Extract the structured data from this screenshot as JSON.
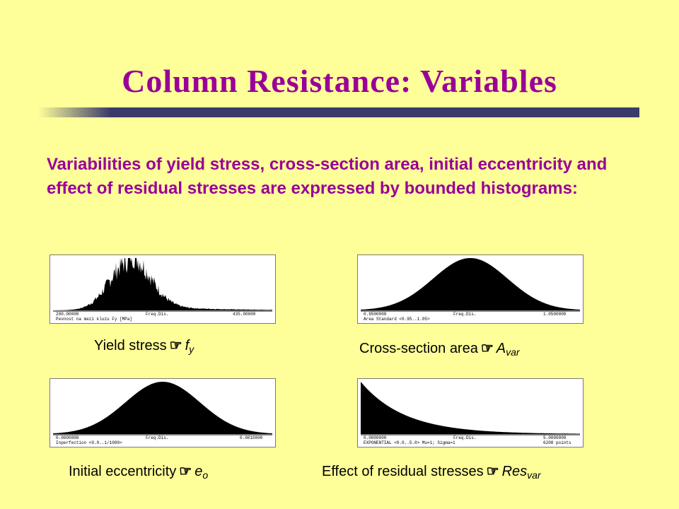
{
  "slide": {
    "title": "Column Resistance:  Variables",
    "intro": "Variabilities of yield stress, cross-section area, initial eccentricity and effect of residual stresses are expressed by bounded histograms:"
  },
  "histograms": [
    {
      "id": "yield",
      "min": "200.00000",
      "mid": "Freq.Dis.",
      "max": "435.00000",
      "desc": "Pevnost na mezi kluzu Fy [MPa]",
      "extra": "",
      "caption": "Yield stress",
      "icon": "pointing-hand-icon",
      "symbol": "f",
      "sub": "y"
    },
    {
      "id": "area",
      "min": "0.9500000",
      "mid": "Freq.Dis.",
      "max": "1.0500000",
      "desc": "Area Standard <0.95..1.05>",
      "extra": "",
      "caption": "Cross-section area",
      "icon": "pointing-hand-icon",
      "symbol": "A",
      "sub": "var"
    },
    {
      "id": "imperfection",
      "min": "0.0000000",
      "mid": "Freq.Dis.",
      "max": "0.0010000",
      "desc": "Inperfection <0.0..1/1000>",
      "extra": "",
      "caption": "Initial eccentricity",
      "icon": "pointing-hand-icon",
      "symbol": "e",
      "sub": "o"
    },
    {
      "id": "residual",
      "min": "0.0000000",
      "mid": "Freq.Dis.",
      "max": "5.0000000",
      "desc": "EXPONENTIAL <0.0..5.0> Mu=1; Sigma=1",
      "extra": "6208 points",
      "caption": "Effect of residual stresses",
      "icon": "pointing-hand-icon",
      "symbol": "Res",
      "sub": "var"
    }
  ],
  "colors": {
    "background": "#ffff99",
    "accent": "#990099",
    "rule": "#3b3b6b"
  }
}
